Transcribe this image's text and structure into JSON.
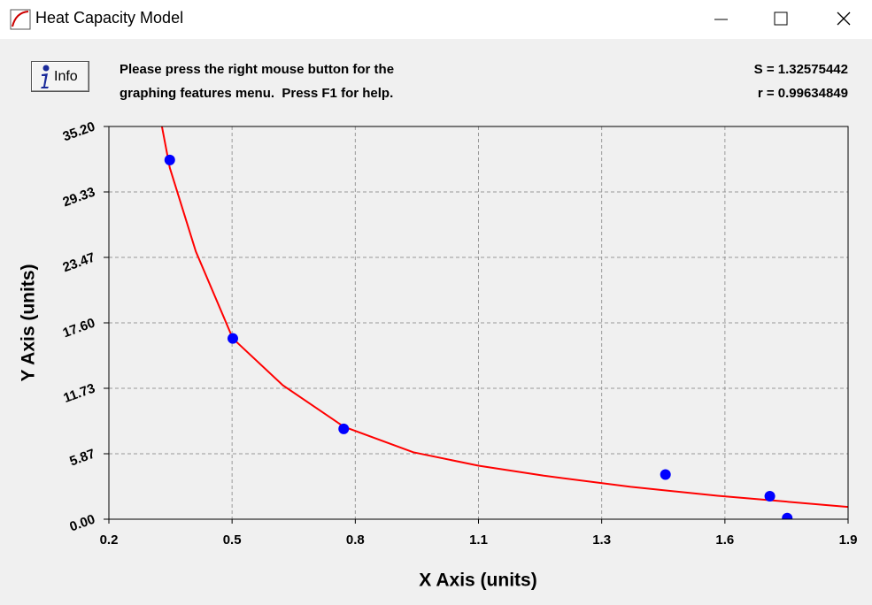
{
  "window": {
    "title": "Heat Capacity Model"
  },
  "toolbar": {
    "info_button": "Info",
    "message_lines": [
      "Please press the right mouse button for the",
      "graphing features menu.  Press F1 for help."
    ],
    "stats": [
      "S = 1.32575442",
      "r = 0.99634849"
    ]
  },
  "chart_data": {
    "type": "scatter",
    "xlabel": "X Axis (units)",
    "ylabel": "Y Axis (units)",
    "xlim": [
      0.2,
      1.9
    ],
    "ylim": [
      0,
      35.2
    ],
    "xticks": [
      0.2,
      {
        "value": 0.4833,
        "label": "0.5"
      },
      {
        "value": 0.7667,
        "label": "0.8"
      },
      {
        "value": 1.05,
        "label": "1.1"
      },
      {
        "value": 1.3333,
        "label": "1.3"
      },
      {
        "value": 1.6167,
        "label": "1.6"
      },
      1.9
    ],
    "yticks": [
      {
        "value": 0,
        "label": "0.00"
      },
      {
        "value": 5.8667,
        "label": "5.87"
      },
      {
        "value": 11.7333,
        "label": "11.73"
      },
      {
        "value": 17.6,
        "label": "17.60"
      },
      {
        "value": 23.4667,
        "label": "23.47"
      },
      {
        "value": 29.3333,
        "label": "29.33"
      },
      {
        "value": 35.2,
        "label": "35.20"
      }
    ],
    "grid": true,
    "series": [
      {
        "type": "scatter",
        "color": "#0000ff",
        "x": [
          0.34,
          0.485,
          0.74,
          1.48,
          1.72,
          1.76
        ],
        "values": [
          32.2,
          16.2,
          8.1,
          4.0,
          2.06,
          0.1
        ]
      },
      {
        "type": "line",
        "color": "#ff0000",
        "x": [
          0.322,
          0.34,
          0.4,
          0.485,
          0.6,
          0.74,
          0.9,
          1.05,
          1.2,
          1.4,
          1.6,
          1.75,
          1.9
        ],
        "values": [
          35.2,
          31.5,
          24.0,
          16.2,
          12.0,
          8.3,
          6.0,
          4.8,
          3.9,
          2.9,
          2.1,
          1.6,
          1.1
        ]
      }
    ]
  }
}
